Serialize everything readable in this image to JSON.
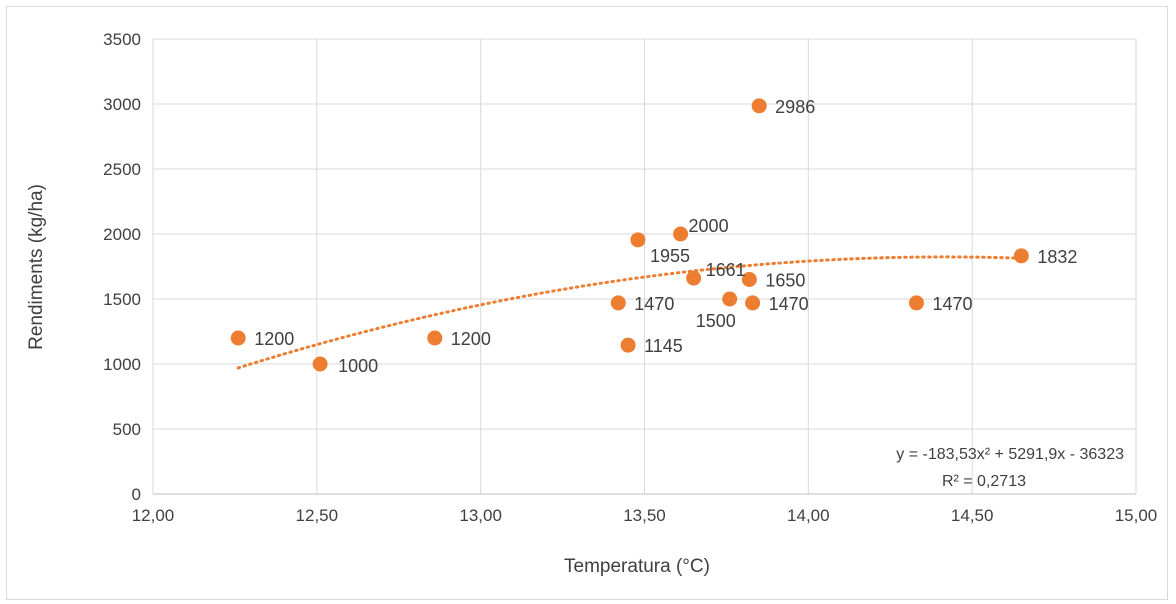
{
  "chart_data": {
    "type": "scatter",
    "xlabel": "Temperatura (°C)",
    "ylabel": "Rendiments (kg/ha)",
    "xlim": [
      12.0,
      15.0
    ],
    "ylim": [
      0,
      3500
    ],
    "xticks": [
      12.0,
      12.5,
      13.0,
      13.5,
      14.0,
      14.5,
      15.0
    ],
    "xtick_labels": [
      "12,00",
      "12,50",
      "13,00",
      "13,50",
      "14,00",
      "14,50",
      "15,00"
    ],
    "yticks": [
      0,
      500,
      1000,
      1500,
      2000,
      2500,
      3000,
      3500
    ],
    "ytick_labels": [
      "0",
      "500",
      "1000",
      "1500",
      "2000",
      "2500",
      "3000",
      "3500"
    ],
    "grid": "vertical and horizontal",
    "marker_color": "#ed7d31",
    "trend_color": "#ed7d31",
    "points": [
      {
        "x": 12.26,
        "y": 1200,
        "label": "1200",
        "label_pos": "right"
      },
      {
        "x": 12.51,
        "y": 1000,
        "label": "1000",
        "label_pos": "right-below"
      },
      {
        "x": 12.86,
        "y": 1200,
        "label": "1200",
        "label_pos": "right"
      },
      {
        "x": 13.42,
        "y": 1470,
        "label": "1470",
        "label_pos": "right"
      },
      {
        "x": 13.45,
        "y": 1145,
        "label": "1145",
        "label_pos": "right"
      },
      {
        "x": 13.48,
        "y": 1955,
        "label": "1955",
        "label_pos": "below-right"
      },
      {
        "x": 13.61,
        "y": 2000,
        "label": "2000",
        "label_pos": "above-right"
      },
      {
        "x": 13.65,
        "y": 1661,
        "label": "1661",
        "label_pos": "right-close"
      },
      {
        "x": 13.76,
        "y": 1500,
        "label": "1500",
        "label_pos": "below-left"
      },
      {
        "x": 13.82,
        "y": 1650,
        "label": "1650",
        "label_pos": "right"
      },
      {
        "x": 13.83,
        "y": 1470,
        "label": "1470",
        "label_pos": "right"
      },
      {
        "x": 13.85,
        "y": 2986,
        "label": "2986",
        "label_pos": "right"
      },
      {
        "x": 14.33,
        "y": 1470,
        "label": "1470",
        "label_pos": "right"
      },
      {
        "x": 14.65,
        "y": 1832,
        "label": "1832",
        "label_pos": "right"
      }
    ],
    "trendline": {
      "type": "polynomial",
      "coefficients": [
        -183.53,
        5291.9,
        -36323
      ],
      "x_range": [
        12.26,
        14.65
      ],
      "equation_text": "y = -183,53x² + 5291,9x - 36323",
      "r2_text": "R² = 0,2713"
    }
  }
}
